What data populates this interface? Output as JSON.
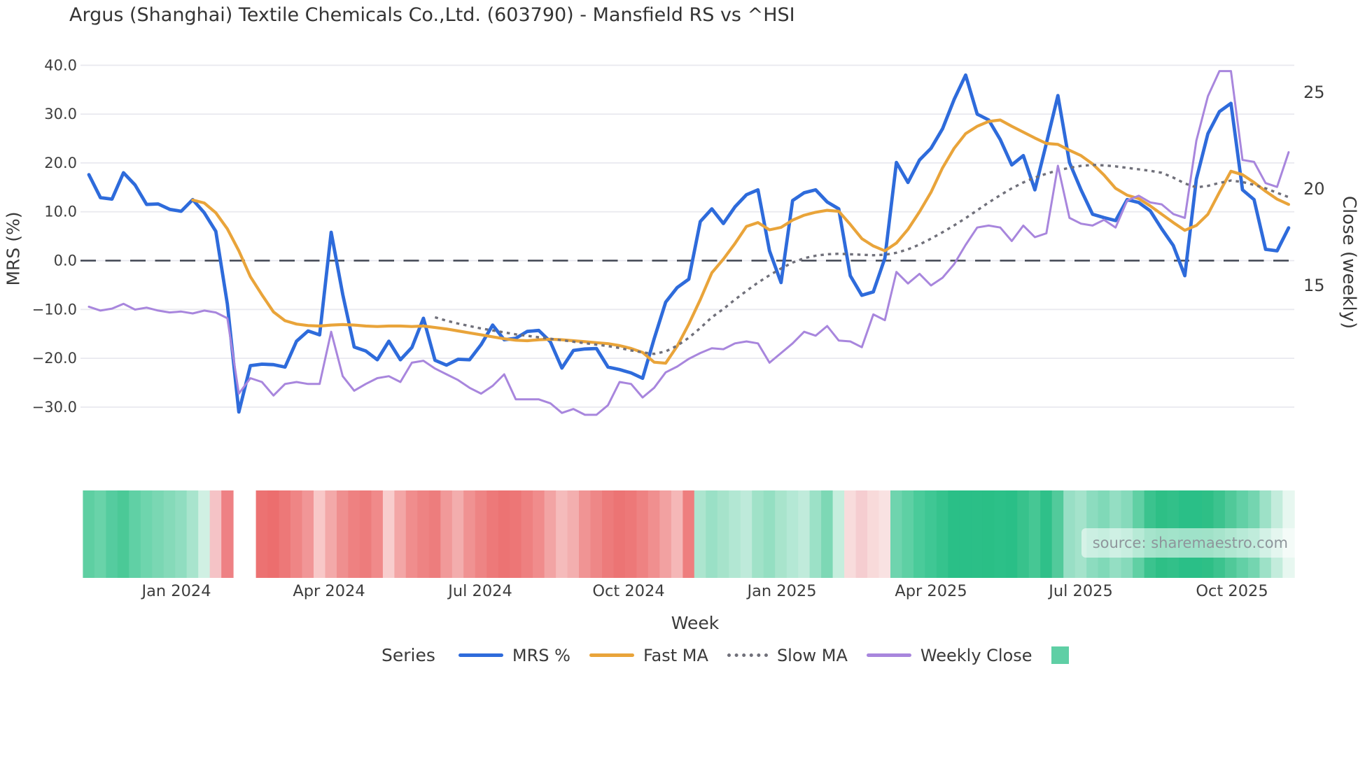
{
  "title": "Argus (Shanghai) Textile Chemicals Co.,Ltd. (603790) - Mansfield RS vs ^HSI",
  "source": "source: sharemaestro.com",
  "axes": {
    "left_label": "MRS (%)",
    "right_label": "Close (weekly)",
    "x_label": "Week",
    "left_ticks": [
      "40.0",
      "30.0",
      "20.0",
      "10.0",
      "0.0",
      "−10.0",
      "−20.0",
      "−30.0"
    ],
    "left_tick_values": [
      40,
      30,
      20,
      10,
      0,
      -10,
      -20,
      -30
    ],
    "right_ticks": [
      "25",
      "20",
      "15"
    ],
    "right_tick_values": [
      25,
      20,
      15
    ],
    "x_ticks": [
      "Jan 2024",
      "Apr 2024",
      "Jul 2024",
      "Oct 2024",
      "Jan 2025",
      "Apr 2025",
      "Jul 2025",
      "Oct 2025"
    ]
  },
  "legend": {
    "title": "Series",
    "items": [
      {
        "label": "MRS %",
        "color": "#2e6bdb",
        "style": "line"
      },
      {
        "label": "Fast MA",
        "color": "#e9a43a",
        "style": "line"
      },
      {
        "label": "Slow MA",
        "color": "#70707a",
        "style": "dotted"
      },
      {
        "label": "Weekly Close",
        "color": "#a886dd",
        "style": "line"
      },
      {
        "label": "",
        "color": "#5fcfa5",
        "style": "square"
      }
    ]
  },
  "colors": {
    "grid": "#e9e9ef",
    "zero_line": "#3f4450",
    "tick_text": "#3d3d3d",
    "mrs": "#2e6bdb",
    "fast_ma": "#e9a43a",
    "slow_ma": "#70707a",
    "weekly_close": "#a886dd",
    "legend_square": "#5fcfa5"
  },
  "chart_data": {
    "type": "line",
    "title": "Argus (Shanghai) Textile Chemicals Co.,Ltd. (603790) - Mansfield RS vs ^HSI",
    "xlabel": "Week",
    "ylabel_left": "MRS (%)",
    "ylabel_right": "Close (weekly)",
    "x_range": [
      "Nov 2023",
      "Nov 2025"
    ],
    "n_weeks": 105,
    "ylim_left": [
      -35,
      42
    ],
    "right_axis_ticks": [
      25,
      20,
      15
    ],
    "grid": true,
    "legend_position": "bottom",
    "x_tick_labels": [
      "Jan 2024",
      "Apr 2024",
      "Jul 2024",
      "Oct 2024",
      "Jan 2025",
      "Apr 2025",
      "Jul 2025",
      "Oct 2025"
    ],
    "x_tick_weeks": [
      7.6,
      20.8,
      33.9,
      46.8,
      60.1,
      73.0,
      86.0,
      99.1
    ],
    "series": [
      {
        "name": "MRS %",
        "axis": "left",
        "style": "solid",
        "color": "#2e6bdb",
        "values": [
          17.6,
          12.9,
          12.6,
          18.0,
          15.5,
          11.5,
          11.6,
          10.5,
          10.1,
          12.5,
          9.8,
          6.0,
          -8.9,
          -31.0,
          -21.5,
          -21.2,
          -21.3,
          -21.8,
          -16.5,
          -14.4,
          -15.2,
          5.8,
          -6.9,
          -17.7,
          -18.5,
          -20.3,
          -16.5,
          -20.3,
          -17.8,
          -11.8,
          -20.4,
          -21.4,
          -20.2,
          -20.3,
          -17.2,
          -13.2,
          -16.2,
          -15.9,
          -14.5,
          -14.3,
          -16.6,
          -22.0,
          -18.4,
          -18.1,
          -18.0,
          -21.8,
          -22.3,
          -23.0,
          -24.1,
          -16.0,
          -8.5,
          -5.5,
          -3.8,
          8.0,
          10.6,
          7.6,
          11.0,
          13.5,
          14.5,
          2.0,
          -4.5,
          12.3,
          13.9,
          14.5,
          12.0,
          10.6,
          -3.1,
          -7.1,
          -6.4,
          0.5,
          20.1,
          16.0,
          20.6,
          23.0,
          27.0,
          33.0,
          38.0,
          30.0,
          28.8,
          24.8,
          19.6,
          21.5,
          14.5,
          24.0,
          33.8,
          20.1,
          14.5,
          9.5,
          8.8,
          8.2,
          12.5,
          11.9,
          10.2,
          6.5,
          3.1,
          -3.1,
          16.7,
          26.0,
          30.5,
          32.2,
          14.5,
          12.5,
          2.3,
          2.0,
          6.7
        ]
      },
      {
        "name": "Fast MA",
        "axis": "left",
        "style": "solid",
        "color": "#e9a43a",
        "values": [
          null,
          null,
          null,
          null,
          null,
          null,
          null,
          null,
          null,
          12.4,
          11.8,
          9.8,
          6.5,
          2.0,
          -3.3,
          -7.0,
          -10.5,
          -12.3,
          -13.0,
          -13.3,
          -13.4,
          -13.2,
          -13.1,
          -13.2,
          -13.4,
          -13.5,
          -13.4,
          -13.4,
          -13.5,
          -13.4,
          -13.7,
          -14.0,
          -14.4,
          -14.8,
          -15.2,
          -15.6,
          -16.0,
          -16.3,
          -16.4,
          -16.2,
          -16.1,
          -16.2,
          -16.4,
          -16.6,
          -16.8,
          -17.0,
          -17.4,
          -18.0,
          -18.8,
          -20.8,
          -21.0,
          -17.5,
          -13.0,
          -8.0,
          -2.5,
          0.3,
          3.5,
          7.0,
          7.8,
          6.3,
          6.8,
          8.3,
          9.3,
          9.9,
          10.3,
          10.1,
          7.4,
          4.5,
          3.0,
          2.0,
          3.6,
          6.4,
          10.0,
          14.0,
          19.0,
          23.0,
          26.0,
          27.5,
          28.5,
          28.8,
          27.5,
          26.3,
          25.1,
          24.0,
          23.8,
          22.6,
          21.5,
          19.8,
          17.5,
          14.8,
          13.4,
          12.7,
          11.2,
          9.5,
          7.8,
          6.2,
          7.2,
          9.5,
          14.0,
          18.3,
          17.6,
          16.0,
          14.2,
          12.6,
          11.5
        ]
      },
      {
        "name": "Slow MA",
        "axis": "left",
        "style": "dotted",
        "color": "#70707a",
        "values": [
          null,
          null,
          null,
          null,
          null,
          null,
          null,
          null,
          null,
          null,
          null,
          null,
          null,
          null,
          null,
          null,
          null,
          null,
          null,
          null,
          null,
          null,
          null,
          null,
          null,
          null,
          null,
          null,
          null,
          null,
          -11.6,
          -12.3,
          -12.9,
          -13.4,
          -13.9,
          -14.3,
          -14.7,
          -15.1,
          -15.4,
          -15.7,
          -16.0,
          -16.3,
          -16.6,
          -16.9,
          -17.2,
          -17.5,
          -17.9,
          -18.4,
          -18.8,
          -19.1,
          -18.6,
          -17.4,
          -15.8,
          -13.8,
          -11.6,
          -9.9,
          -8.0,
          -6.2,
          -4.5,
          -3.0,
          -1.6,
          -0.4,
          0.5,
          1.0,
          1.3,
          1.4,
          1.3,
          1.2,
          1.1,
          1.2,
          1.6,
          2.3,
          3.3,
          4.5,
          5.8,
          7.2,
          8.7,
          10.3,
          11.9,
          13.4,
          14.8,
          16.0,
          17.0,
          17.8,
          18.5,
          19.0,
          19.4,
          19.6,
          19.5,
          19.3,
          19.0,
          18.7,
          18.4,
          18.0,
          17.0,
          15.8,
          15.0,
          15.3,
          15.9,
          16.4,
          16.1,
          15.5,
          14.8,
          13.9,
          13.0
        ]
      },
      {
        "name": "Weekly Close",
        "axis": "right",
        "style": "solid",
        "color": "#a886dd",
        "values": [
          13.9,
          13.7,
          13.8,
          14.05,
          13.75,
          13.85,
          13.7,
          13.6,
          13.65,
          13.55,
          13.7,
          13.6,
          13.3,
          9.4,
          10.2,
          10.0,
          9.3,
          9.9,
          10.0,
          9.9,
          9.9,
          12.6,
          10.3,
          9.55,
          9.9,
          10.2,
          10.3,
          10.0,
          11.0,
          11.1,
          10.7,
          10.4,
          10.1,
          9.7,
          9.4,
          9.8,
          10.4,
          9.1,
          9.1,
          9.1,
          8.9,
          8.4,
          8.6,
          8.3,
          8.3,
          8.8,
          10.0,
          9.9,
          9.2,
          9.7,
          10.5,
          10.8,
          11.2,
          11.5,
          11.75,
          11.7,
          12.0,
          12.1,
          12.0,
          11.0,
          11.5,
          12.0,
          12.6,
          12.4,
          12.9,
          12.15,
          12.1,
          11.8,
          13.5,
          13.2,
          15.7,
          15.1,
          15.6,
          15.0,
          15.4,
          16.1,
          17.1,
          18.0,
          18.1,
          18.0,
          17.3,
          18.1,
          17.5,
          17.7,
          21.2,
          18.5,
          18.2,
          18.1,
          18.4,
          18.0,
          19.4,
          19.65,
          19.3,
          19.2,
          18.7,
          18.5,
          22.5,
          24.8,
          26.1,
          26.1,
          21.5,
          21.4,
          20.3,
          20.1,
          21.9
        ]
      }
    ],
    "heatmap_strip": {
      "description": "weekly relative-strength heatmap under chart, green=strong red=weak",
      "cell_colors": [
        "#5ecfa2",
        "#69d3a9",
        "#55cc9f",
        "#4bc997",
        "#60d0a5",
        "#6ed5ad",
        "#7ad7b3",
        "#85dab9",
        "#90ddc0",
        "#a8e4cd",
        "#d0f0e3",
        "#f5c3c6",
        "#ee8184",
        null,
        null,
        "#ec7272",
        "#ec6e6e",
        "#ed7878",
        "#ef8585",
        "#f19697",
        "#f8c8c8",
        "#f3a9a9",
        "#ef8f8f",
        "#ee8181",
        "#ed7c7c",
        "#f08a8a",
        "#f8cdcd",
        "#f3a6a6",
        "#f08d8d",
        "#ee8383",
        "#ed7d7d",
        "#f19999",
        "#f3adad",
        "#f09292",
        "#ee8484",
        "#ed7979",
        "#ec7373",
        "#ed7676",
        "#ee8080",
        "#f08c8c",
        "#f2a4a4",
        "#f5bbbb",
        "#f3afaf",
        "#f09494",
        "#ee8787",
        "#ed7b7b",
        "#ec7474",
        "#ed7878",
        "#ee8282",
        "#f08f8f",
        "#f2a1a1",
        "#f5b7b7",
        "#ee7e7e",
        "#ace5cf",
        "#9ae0c6",
        "#a6e3cb",
        "#b2e7d3",
        "#beeada",
        "#a0e2c8",
        "#94dfc2",
        "#a8e4cc",
        "#b4e8d5",
        "#c0ebdb",
        "#9ce1c7",
        "#7dd8b5",
        "#c5eedd",
        "#f8dcdc",
        "#f5cdd0",
        "#f8dada",
        "#f9e2e2",
        "#6fd4ae",
        "#5ed0a4",
        "#4acb9a",
        "#3fc794",
        "#35c38d",
        "#2abf87",
        "#2abf87",
        "#2bbf87",
        "#2abf86",
        "#2cc088",
        "#2abf87",
        "#38c28c",
        "#46c794",
        "#2fc089",
        "#52ca9b",
        "#98dfc5",
        "#a4e3cb",
        "#8cdcbf",
        "#80d9b8",
        "#94dec3",
        "#86dabb",
        "#60d0a4",
        "#3bc38e",
        "#2ebf86",
        "#32c089",
        "#2abf87",
        "#2abf87",
        "#2ebf86",
        "#3cc38e",
        "#50c999",
        "#62d0a6",
        "#74d5b0",
        "#9de1c7",
        "#c3ecdc",
        "#e7f7f0"
      ]
    }
  }
}
